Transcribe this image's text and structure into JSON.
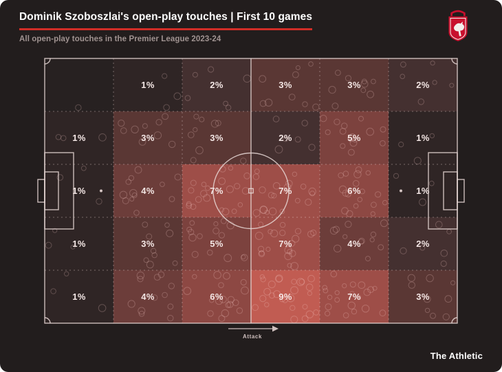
{
  "header": {
    "title": "Dominik Szoboszlai's open-play touches | First 10 games",
    "subtitle": "All open-play touches in the Premier League 2023-24"
  },
  "footer": {
    "brand": "The Athletic"
  },
  "crest": {
    "name": "Liverpool FC crest"
  },
  "colors": {
    "accent": "#d22d27",
    "background": "#221d1d",
    "pitch_line": "#e8d8d6",
    "label": "#f4e7e5"
  },
  "chart_data": {
    "type": "heatmap",
    "title": "Dominik Szoboszlai's open-play touches | First 10 games",
    "subtitle": "All open-play touches in the Premier League 2023-24",
    "grid": {
      "rows": 5,
      "cols": 6
    },
    "orientation": "horizontal-pitch",
    "attack_label": "Attack",
    "attack_direction": "left-to-right",
    "values_percent": [
      [
        0,
        1,
        2,
        3,
        3,
        2
      ],
      [
        1,
        3,
        3,
        2,
        5,
        1
      ],
      [
        1,
        4,
        7,
        7,
        6,
        1
      ],
      [
        1,
        3,
        5,
        7,
        4,
        2
      ],
      [
        1,
        4,
        6,
        9,
        7,
        3
      ]
    ],
    "cell_labels": [
      [
        "",
        "1%",
        "2%",
        "3%",
        "3%",
        "2%"
      ],
      [
        "1%",
        "3%",
        "3%",
        "2%",
        "5%",
        "1%"
      ],
      [
        "1%",
        "4%",
        "7%",
        "7%",
        "6%",
        "1%"
      ],
      [
        "1%",
        "3%",
        "5%",
        "7%",
        "4%",
        "2%"
      ],
      [
        "1%",
        "4%",
        "6%",
        "9%",
        "7%",
        "3%"
      ]
    ],
    "color_scale": {
      "0": "#272121",
      "1": "#2f2525",
      "2": "#443030",
      "3": "#5a3734",
      "4": "#6c3d3a",
      "5": "#7c423e",
      "6": "#8d4843",
      "7": "#9e4e48",
      "9": "#c15c52"
    }
  }
}
